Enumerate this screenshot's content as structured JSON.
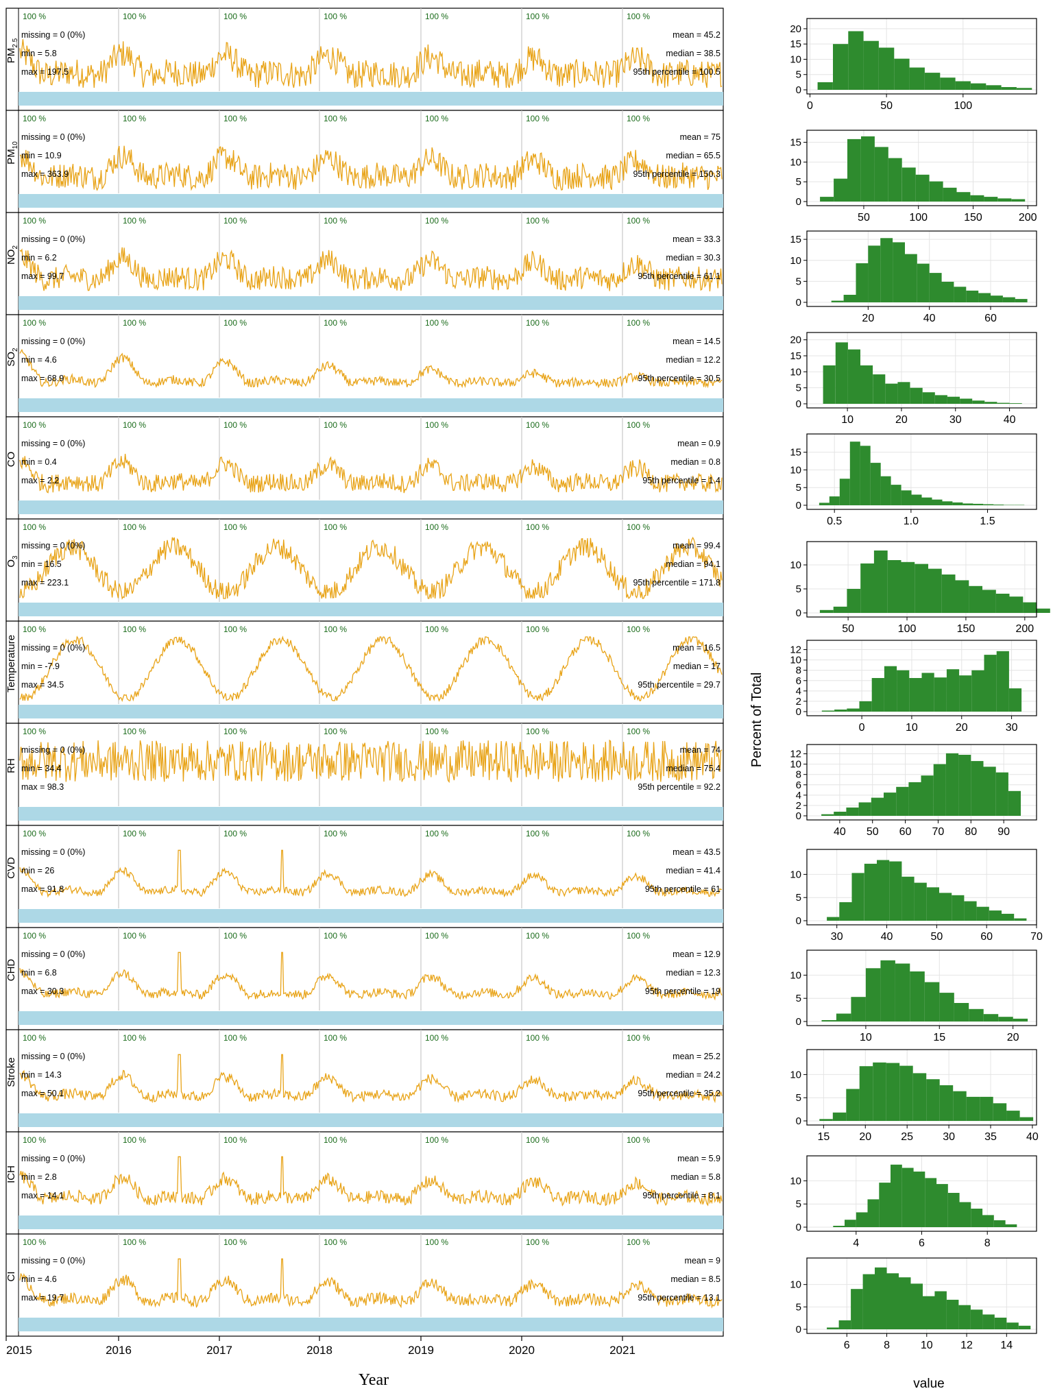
{
  "figure": {
    "x_title": "Year",
    "hist_y_title": "Percent of Total",
    "hist_x_title": "value",
    "years": [
      "2015",
      "2016",
      "2017",
      "2018",
      "2019",
      "2020",
      "2021"
    ],
    "colors": {
      "series": "#E8A317",
      "bar": "#2E8B2E",
      "band": "#ADD8E6",
      "coverage": "#1A6B1A",
      "grid": "#C8C8C8"
    }
  },
  "chart_data": [
    {
      "type": "line",
      "label": "PM2.5",
      "coverage": [
        "100 %",
        "100 %",
        "100 %",
        "100 %",
        "100 %",
        "100 %",
        "100 %"
      ],
      "stats_left": [
        "missing = 0 (0%)",
        "min = 5.8",
        "max = 197.5"
      ],
      "stats_right": [
        "mean = 45.2",
        "median = 38.5",
        "95th percentile = 100.5"
      ],
      "y_range": [
        5.8,
        197.5
      ],
      "x_range": [
        "2015-01-01",
        "2021-10-31"
      ],
      "series_values": {
        "min": 5.8,
        "max": 197.5,
        "mean": 45.2,
        "median": 38.5,
        "p95": 100.5
      }
    },
    {
      "type": "line",
      "label": "PM10",
      "coverage": [
        "100 %",
        "100 %",
        "100 %",
        "100 %",
        "100 %",
        "100 %",
        "100 %"
      ],
      "stats_left": [
        "missing = 0 (0%)",
        "min = 10.9",
        "max = 363.9"
      ],
      "stats_right": [
        "mean = 75",
        "median = 65.5",
        "95th percentile = 150.3"
      ],
      "y_range": [
        10.9,
        363.9
      ],
      "x_range": [
        "2015-01-01",
        "2021-10-31"
      ],
      "series_values": {
        "min": 10.9,
        "max": 363.9,
        "mean": 75,
        "median": 65.5,
        "p95": 150.3
      }
    },
    {
      "type": "line",
      "label": "NO2",
      "coverage": [
        "100 %",
        "100 %",
        "100 %",
        "100 %",
        "100 %",
        "100 %",
        "100 %"
      ],
      "stats_left": [
        "missing = 0 (0%)",
        "min = 6.2",
        "max = 99.7"
      ],
      "stats_right": [
        "mean = 33.3",
        "median = 30.3",
        "95th percentile = 61.1"
      ],
      "y_range": [
        6.2,
        99.7
      ],
      "x_range": [
        "2015-01-01",
        "2021-10-31"
      ],
      "series_values": {
        "min": 6.2,
        "max": 99.7,
        "mean": 33.3,
        "median": 30.3,
        "p95": 61.1
      }
    },
    {
      "type": "line",
      "label": "SO2",
      "coverage": [
        "100 %",
        "100 %",
        "100 %",
        "100 %",
        "100 %",
        "100 %",
        "100 %"
      ],
      "stats_left": [
        "missing = 0 (0%)",
        "min = 4.6",
        "max = 68.9"
      ],
      "stats_right": [
        "mean = 14.5",
        "median = 12.2",
        "95th percentile = 30.5"
      ],
      "y_range": [
        4.6,
        68.9
      ],
      "x_range": [
        "2015-01-01",
        "2021-10-31"
      ],
      "series_values": {
        "min": 4.6,
        "max": 68.9,
        "mean": 14.5,
        "median": 12.2,
        "p95": 30.5
      }
    },
    {
      "type": "line",
      "label": "CO",
      "coverage": [
        "100 %",
        "100 %",
        "100 %",
        "100 %",
        "100 %",
        "100 %",
        "100 %"
      ],
      "stats_left": [
        "missing = 0 (0%)",
        "min = 0.4",
        "max = 2.2"
      ],
      "stats_right": [
        "mean = 0.9",
        "median = 0.8",
        "95th percentile = 1.4"
      ],
      "y_range": [
        0.4,
        2.2
      ],
      "x_range": [
        "2015-01-01",
        "2021-10-31"
      ],
      "series_values": {
        "min": 0.4,
        "max": 2.2,
        "mean": 0.9,
        "median": 0.8,
        "p95": 1.4
      }
    },
    {
      "type": "line",
      "label": "O3",
      "coverage": [
        "100 %",
        "100 %",
        "100 %",
        "100 %",
        "100 %",
        "100 %",
        "100 %"
      ],
      "stats_left": [
        "missing = 0 (0%)",
        "min = 16.5",
        "max = 223.1"
      ],
      "stats_right": [
        "mean = 99.4",
        "median = 94.1",
        "95th percentile = 171.8"
      ],
      "y_range": [
        16.5,
        223.1
      ],
      "x_range": [
        "2015-01-01",
        "2021-10-31"
      ],
      "series_values": {
        "min": 16.5,
        "max": 223.1,
        "mean": 99.4,
        "median": 94.1,
        "p95": 171.8
      }
    },
    {
      "type": "line",
      "label": "Temperature",
      "coverage": [
        "100 %",
        "100 %",
        "100 %",
        "100 %",
        "100 %",
        "100 %",
        "100 %"
      ],
      "stats_left": [
        "missing = 0 (0%)",
        "min = -7.9",
        "max = 34.5"
      ],
      "stats_right": [
        "mean = 16.5",
        "median = 17",
        "95th percentile = 29.7"
      ],
      "y_range": [
        -7.9,
        34.5
      ],
      "x_range": [
        "2015-01-01",
        "2021-10-31"
      ],
      "series_values": {
        "min": -7.9,
        "max": 34.5,
        "mean": 16.5,
        "median": 17,
        "p95": 29.7
      }
    },
    {
      "type": "line",
      "label": "RH",
      "coverage": [
        "100 %",
        "100 %",
        "100 %",
        "100 %",
        "100 %",
        "100 %",
        "100 %"
      ],
      "stats_left": [
        "missing = 0 (0%)",
        "min = 34.4",
        "max = 98.3"
      ],
      "stats_right": [
        "mean = 74",
        "median = 75.4",
        "95th percentile = 92.2"
      ],
      "y_range": [
        34.4,
        98.3
      ],
      "x_range": [
        "2015-01-01",
        "2021-10-31"
      ],
      "series_values": {
        "min": 34.4,
        "max": 98.3,
        "mean": 74,
        "median": 75.4,
        "p95": 92.2
      }
    },
    {
      "type": "line",
      "label": "CVD",
      "coverage": [
        "100 %",
        "100 %",
        "100 %",
        "100 %",
        "100 %",
        "100 %",
        "100 %"
      ],
      "stats_left": [
        "missing = 0 (0%)",
        "min = 26",
        "max = 91.8"
      ],
      "stats_right": [
        "mean = 43.5",
        "median = 41.4",
        "95th percentile = 61"
      ],
      "y_range": [
        26,
        91.8
      ],
      "x_range": [
        "2015-01-01",
        "2021-10-31"
      ],
      "series_values": {
        "min": 26,
        "max": 91.8,
        "mean": 43.5,
        "median": 41.4,
        "p95": 61
      }
    },
    {
      "type": "line",
      "label": "CHD",
      "coverage": [
        "100 %",
        "100 %",
        "100 %",
        "100 %",
        "100 %",
        "100 %",
        "100 %"
      ],
      "stats_left": [
        "missing = 0 (0%)",
        "min = 6.8",
        "max = 30.3"
      ],
      "stats_right": [
        "mean = 12.9",
        "median = 12.3",
        "95th percentile = 19"
      ],
      "y_range": [
        6.8,
        30.3
      ],
      "x_range": [
        "2015-01-01",
        "2021-10-31"
      ],
      "series_values": {
        "min": 6.8,
        "max": 30.3,
        "mean": 12.9,
        "median": 12.3,
        "p95": 19
      }
    },
    {
      "type": "line",
      "label": "Stroke",
      "coverage": [
        "100 %",
        "100 %",
        "100 %",
        "100 %",
        "100 %",
        "100 %",
        "100 %"
      ],
      "stats_left": [
        "missing = 0 (0%)",
        "min = 14.3",
        "max = 50.1"
      ],
      "stats_right": [
        "mean = 25.2",
        "median = 24.2",
        "95th percentile = 35.2"
      ],
      "y_range": [
        14.3,
        50.1
      ],
      "x_range": [
        "2015-01-01",
        "2021-10-31"
      ],
      "series_values": {
        "min": 14.3,
        "max": 50.1,
        "mean": 25.2,
        "median": 24.2,
        "p95": 35.2
      }
    },
    {
      "type": "line",
      "label": "ICH",
      "coverage": [
        "100 %",
        "100 %",
        "100 %",
        "100 %",
        "100 %",
        "100 %",
        "100 %"
      ],
      "stats_left": [
        "missing = 0 (0%)",
        "min = 2.8",
        "max = 14.1"
      ],
      "stats_right": [
        "mean = 5.9",
        "median = 5.8",
        "95th percentile = 8.1"
      ],
      "y_range": [
        2.8,
        14.1
      ],
      "x_range": [
        "2015-01-01",
        "2021-10-31"
      ],
      "series_values": {
        "min": 2.8,
        "max": 14.1,
        "mean": 5.9,
        "median": 5.8,
        "p95": 8.1
      }
    },
    {
      "type": "line",
      "label": "CI",
      "coverage": [
        "100 %",
        "100 %",
        "100 %",
        "100 %",
        "100 %",
        "100 %",
        "100 %"
      ],
      "stats_left": [
        "missing = 0 (0%)",
        "min = 4.6",
        "max = 19.7"
      ],
      "stats_right": [
        "mean = 9",
        "median = 8.5",
        "95th percentile = 13.1"
      ],
      "y_range": [
        4.6,
        19.7
      ],
      "x_range": [
        "2015-01-01",
        "2021-10-31"
      ],
      "series_values": {
        "min": 4.6,
        "max": 19.7,
        "mean": 9,
        "median": 8.5,
        "p95": 13.1
      }
    },
    {
      "type": "bar",
      "name": "PM2.5 histogram",
      "xlim": [
        -2,
        148
      ],
      "ylim": [
        0,
        22
      ],
      "x_ticks": [
        0,
        50,
        100
      ],
      "y_ticks": [
        0,
        5,
        10,
        15,
        20
      ],
      "bins": {
        "start": 5,
        "width": 10
      },
      "values": [
        2.5,
        15,
        19.2,
        16,
        13.8,
        10.2,
        7.3,
        5.6,
        4,
        2.8,
        2.1,
        1.5,
        0.9,
        0.6
      ]
    },
    {
      "type": "bar",
      "name": "PM10 histogram",
      "xlim": [
        -2,
        208
      ],
      "ylim": [
        0,
        17
      ],
      "x_ticks": [
        50,
        100,
        150,
        200
      ],
      "y_ticks": [
        0,
        5,
        10,
        15
      ],
      "bins": {
        "start": 10,
        "width": 12.5
      },
      "values": [
        1.2,
        5.8,
        15.8,
        16.5,
        13.8,
        11,
        8.6,
        6.8,
        5.1,
        3.5,
        2.4,
        1.6,
        1.2,
        0.8,
        0.6
      ]
    },
    {
      "type": "bar",
      "name": "NO2 histogram",
      "xlim": [
        0,
        75
      ],
      "ylim": [
        0,
        16
      ],
      "x_ticks": [
        20,
        40,
        60
      ],
      "y_ticks": [
        0,
        5,
        10,
        15
      ],
      "bins": {
        "start": 8,
        "width": 4
      },
      "values": [
        0.4,
        1.8,
        9.3,
        13.5,
        15.3,
        14.3,
        11.5,
        9.2,
        7,
        4.9,
        3.7,
        2.8,
        2.2,
        1.6,
        1.2,
        0.8
      ]
    },
    {
      "type": "bar",
      "name": "SO2 histogram",
      "xlim": [
        2.5,
        45
      ],
      "ylim": [
        0,
        21
      ],
      "x_ticks": [
        10,
        20,
        30,
        40
      ],
      "y_ticks": [
        0,
        5,
        10,
        15,
        20
      ],
      "bins": {
        "start": 5.5,
        "width": 2.3
      },
      "values": [
        12,
        19.2,
        17,
        12,
        9.2,
        6.3,
        6.8,
        5,
        3.6,
        2.7,
        2.2,
        1.6,
        1,
        0.6,
        0.3,
        0.2
      ]
    },
    {
      "type": "bar",
      "name": "CO histogram",
      "xlim": [
        0.32,
        1.82
      ],
      "ylim": [
        0,
        19
      ],
      "x_ticks": [
        0.5,
        1.0,
        1.5
      ],
      "y_ticks": [
        0,
        5,
        10,
        15
      ],
      "bins": {
        "start": 0.4,
        "width": 0.067
      },
      "values": [
        0.7,
        2.5,
        7.5,
        18,
        16.8,
        12,
        8.2,
        5.8,
        4.2,
        3,
        2.2,
        1.6,
        1.1,
        0.8,
        0.5,
        0.4,
        0.3,
        0.2,
        0.1,
        0.1
      ]
    },
    {
      "type": "bar",
      "name": "O3 histogram",
      "xlim": [
        15,
        210
      ],
      "ylim": [
        0,
        14
      ],
      "x_ticks": [
        50,
        100,
        150,
        200
      ],
      "y_ticks": [
        0,
        5,
        10
      ],
      "bins": {
        "start": 26,
        "width": 11.5
      },
      "values": [
        0.6,
        1.3,
        5,
        10.3,
        13,
        11,
        10.6,
        10.2,
        9.2,
        8,
        6.8,
        5.6,
        4.8,
        4,
        3.4,
        2.2,
        0.9
      ]
    },
    {
      "type": "bar",
      "name": "Temperature histogram",
      "xlim": [
        -11,
        35
      ],
      "ylim": [
        0,
        13
      ],
      "x_ticks": [
        0,
        10,
        20,
        30
      ],
      "y_ticks": [
        0,
        2,
        4,
        6,
        8,
        10,
        12
      ],
      "bins": {
        "start": -8,
        "width": 2.5
      },
      "values": [
        0.2,
        0.4,
        0.6,
        2,
        6.5,
        8.8,
        8,
        6.5,
        7.5,
        6.6,
        8.2,
        7,
        8,
        11,
        11.7,
        4.5
      ]
    },
    {
      "type": "bar",
      "name": "RH histogram",
      "xlim": [
        30,
        100
      ],
      "ylim": [
        0,
        13
      ],
      "x_ticks": [
        40,
        50,
        60,
        70,
        80,
        90
      ],
      "y_ticks": [
        0,
        2,
        4,
        6,
        8,
        10,
        12
      ],
      "bins": {
        "start": 34.4,
        "width": 3.8
      },
      "values": [
        0.3,
        0.8,
        1.6,
        2.6,
        3.5,
        4.5,
        5.6,
        6.5,
        7.8,
        10,
        12.1,
        11.8,
        10.6,
        9.5,
        8.4,
        4.8
      ]
    },
    {
      "type": "bar",
      "name": "CVD histogram",
      "xlim": [
        24,
        70
      ],
      "ylim": [
        0,
        14.5
      ],
      "x_ticks": [
        30,
        40,
        50,
        60,
        70
      ],
      "y_ticks": [
        0,
        5,
        10
      ],
      "bins": {
        "start": 28,
        "width": 2.5
      },
      "values": [
        0.8,
        4,
        10.3,
        12.3,
        13.1,
        12.8,
        9.5,
        8.2,
        7.2,
        6,
        5.5,
        4.2,
        3,
        2.2,
        1.5,
        0.5
      ]
    },
    {
      "type": "bar",
      "name": "CHD histogram",
      "xlim": [
        6,
        21.6
      ],
      "ylim": [
        0,
        14.5
      ],
      "x_ticks": [
        10,
        15,
        20
      ],
      "y_ticks": [
        0,
        5,
        10
      ],
      "bins": {
        "start": 7,
        "width": 1
      },
      "values": [
        0.3,
        1.7,
        5.3,
        11.5,
        13.2,
        12.5,
        10.8,
        8.5,
        6.2,
        4,
        2.7,
        1.6,
        1,
        0.6
      ]
    },
    {
      "type": "bar",
      "name": "Stroke histogram",
      "xlim": [
        13,
        40.5
      ],
      "ylim": [
        0,
        14.5
      ],
      "x_ticks": [
        15,
        20,
        25,
        30,
        35,
        40
      ],
      "y_ticks": [
        0,
        5,
        10
      ],
      "bins": {
        "start": 14.5,
        "width": 1.6
      },
      "values": [
        0.4,
        1.8,
        6.9,
        11.8,
        12.6,
        12.5,
        11.9,
        10.3,
        9,
        7.7,
        6.4,
        5.2,
        5.2,
        3.8,
        2.2,
        0.8
      ]
    },
    {
      "type": "bar",
      "name": "ICH histogram",
      "xlim": [
        2.5,
        9.5
      ],
      "ylim": [
        0,
        14.5
      ],
      "x_ticks": [
        4,
        6,
        8
      ],
      "y_ticks": [
        0,
        5,
        10
      ],
      "bins": {
        "start": 3.3,
        "width": 0.35
      },
      "values": [
        0.3,
        1.6,
        3.2,
        6,
        9.6,
        13.5,
        12.8,
        12,
        10.6,
        9.3,
        7.4,
        5.4,
        4,
        2.6,
        1.5,
        0.6
      ]
    },
    {
      "type": "bar",
      "name": "CI histogram",
      "xlim": [
        4,
        15.5
      ],
      "ylim": [
        0,
        15
      ],
      "x_ticks": [
        6,
        8,
        10,
        12,
        14
      ],
      "y_ticks": [
        0,
        5,
        10
      ],
      "bins": {
        "start": 5,
        "width": 0.6
      },
      "values": [
        0.4,
        2,
        9,
        12.3,
        13.8,
        12.5,
        11.6,
        10.2,
        7.4,
        8.5,
        6.6,
        5.4,
        4.4,
        3.3,
        2.6,
        1.5,
        0.8
      ]
    }
  ]
}
